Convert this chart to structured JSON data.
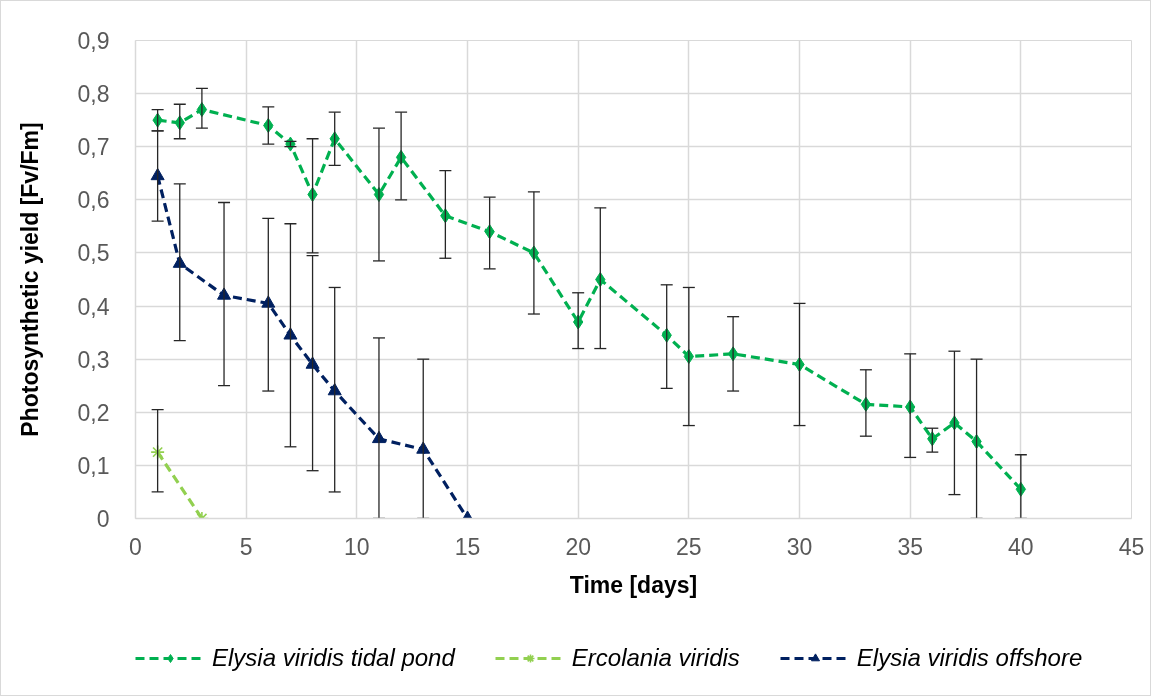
{
  "chart_data": {
    "type": "line",
    "xlabel": "Time [days]",
    "ylabel": "Photosynthetic yield [Fv/Fm]",
    "xlim": [
      0,
      45
    ],
    "xticks": [
      0,
      5,
      10,
      15,
      20,
      25,
      30,
      35,
      40,
      45
    ],
    "ylim": [
      0,
      0.9
    ],
    "yticks": [
      0,
      {
        "value": 0.1,
        "label": "0,1"
      },
      {
        "value": 0.2,
        "label": "0,2"
      },
      {
        "value": 0.3,
        "label": "0,3"
      },
      {
        "value": 0.4,
        "label": "0,4"
      },
      {
        "value": 0.5,
        "label": "0,5"
      },
      {
        "value": 0.6,
        "label": "0,6"
      },
      {
        "value": 0.7,
        "label": "0,7"
      },
      {
        "value": 0.8,
        "label": "0,8"
      },
      {
        "value": 0.9,
        "label": "0,9"
      }
    ],
    "grid": true,
    "legend": "bottom",
    "line_style": "dashed",
    "series": [
      {
        "name": "Elysia viridis tidal pond",
        "color": "#00b050",
        "marker": "diamond",
        "x": [
          1,
          2,
          3,
          6,
          7,
          8,
          9,
          11,
          12,
          14,
          16,
          18,
          20,
          21,
          24,
          25,
          27,
          30,
          33,
          35,
          36,
          37,
          38,
          40
        ],
        "values": [
          0.75,
          0.745,
          0.77,
          0.74,
          0.705,
          0.61,
          0.715,
          0.61,
          0.68,
          0.57,
          0.54,
          0.5,
          0.37,
          0.45,
          0.345,
          0.305,
          0.31,
          0.29,
          0.215,
          0.21,
          0.15,
          0.18,
          0.145,
          0.055
        ],
        "errors": [
          [
            0.73,
            0.77
          ],
          [
            0.715,
            0.78
          ],
          [
            0.735,
            0.81
          ],
          [
            0.705,
            0.775
          ],
          [
            0.7,
            0.71
          ],
          [
            0.5,
            0.715
          ],
          [
            0.665,
            0.765
          ],
          [
            0.485,
            0.735
          ],
          [
            0.6,
            0.765
          ],
          [
            0.49,
            0.655
          ],
          [
            0.47,
            0.605
          ],
          [
            0.385,
            0.615
          ],
          [
            0.32,
            0.425
          ],
          [
            0.32,
            0.585
          ],
          [
            0.245,
            0.44
          ],
          [
            0.175,
            0.435
          ],
          [
            0.24,
            0.38
          ],
          [
            0.175,
            0.405
          ],
          [
            0.155,
            0.28
          ],
          [
            0.115,
            0.31
          ],
          [
            0.125,
            0.17
          ],
          [
            0.045,
            0.315
          ],
          [
            0,
            0.3
          ],
          [
            0,
            0.12
          ]
        ]
      },
      {
        "name": "Ercolania viridis",
        "color": "#92d050",
        "marker": "cross",
        "x": [
          1,
          3
        ],
        "values": [
          0.125,
          0
        ],
        "errors": [
          [
            0.05,
            0.205
          ],
          null
        ]
      },
      {
        "name": "Elysia viridis offshore",
        "color": "#002060",
        "marker": "triangle",
        "x": [
          1,
          2,
          4,
          6,
          7,
          8,
          9,
          11,
          13,
          15
        ],
        "values": [
          0.645,
          0.48,
          0.42,
          0.405,
          0.345,
          0.29,
          0.24,
          0.15,
          0.13,
          0
        ],
        "errors": [
          [
            0.56,
            0.73
          ],
          [
            0.335,
            0.63
          ],
          [
            0.25,
            0.595
          ],
          [
            0.24,
            0.565
          ],
          [
            0.135,
            0.555
          ],
          [
            0.09,
            0.495
          ],
          [
            0.05,
            0.435
          ],
          [
            0,
            0.34
          ],
          [
            0,
            0.3
          ],
          null
        ]
      }
    ]
  }
}
